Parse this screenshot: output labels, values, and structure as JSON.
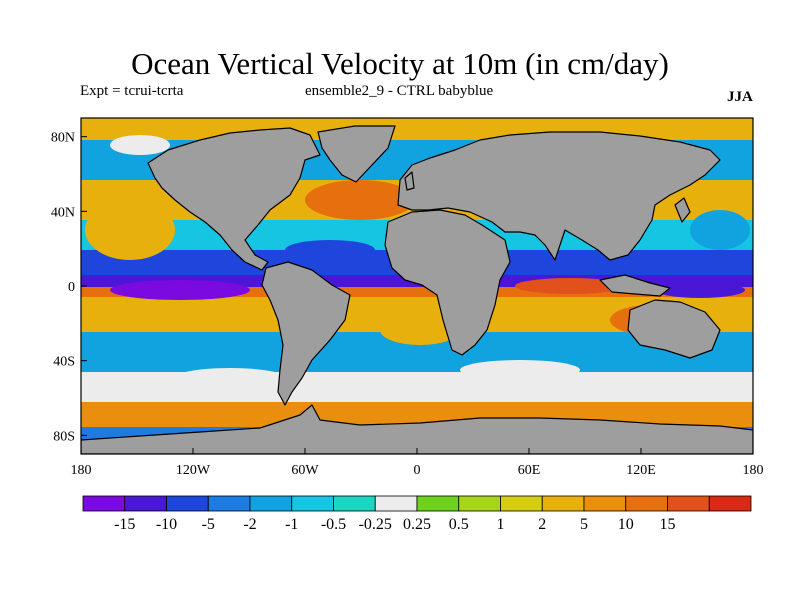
{
  "title": "Ocean Vertical Velocity at 10m (in cm/day)",
  "subtitle_left": "Expt = tcrui-tcrta",
  "subtitle_center": "ensemble2_9 - CTRL babyblue",
  "season_label": "JJA",
  "colors": {
    "land": "#9e9e9e",
    "coastline": "#000000"
  },
  "map": {
    "lon_range": [
      -180,
      180
    ],
    "lat_range": [
      -90,
      90
    ],
    "x_ticks": [
      {
        "lon": -180,
        "label": "180"
      },
      {
        "lon": -120,
        "label": "120W"
      },
      {
        "lon": -60,
        "label": "60W"
      },
      {
        "lon": 0,
        "label": "0"
      },
      {
        "lon": 60,
        "label": "60E"
      },
      {
        "lon": 120,
        "label": "120E"
      },
      {
        "lon": 180,
        "label": "180"
      }
    ],
    "y_ticks": [
      {
        "lat": 80,
        "label": "80N"
      },
      {
        "lat": 40,
        "label": "40N"
      },
      {
        "lat": 0,
        "label": "0"
      },
      {
        "lat": -40,
        "label": "40S"
      },
      {
        "lat": -80,
        "label": "80S"
      }
    ]
  },
  "colorbar": {
    "colors": [
      "#7a0ae0",
      "#4a17d6",
      "#1e45dc",
      "#1f7be2",
      "#11a3df",
      "#16c5e2",
      "#1bd6c0",
      "#ececec",
      "#6ed21c",
      "#a7d31a",
      "#d6cc12",
      "#e8b00c",
      "#e98f0d",
      "#e6700e",
      "#e2501b",
      "#d82a14"
    ],
    "labels": [
      "-15",
      "-10",
      "-5",
      "-2",
      "-1",
      "-0.5",
      "-0.25",
      "0.25",
      "0.5",
      "1",
      "2",
      "5",
      "10",
      "15"
    ]
  }
}
